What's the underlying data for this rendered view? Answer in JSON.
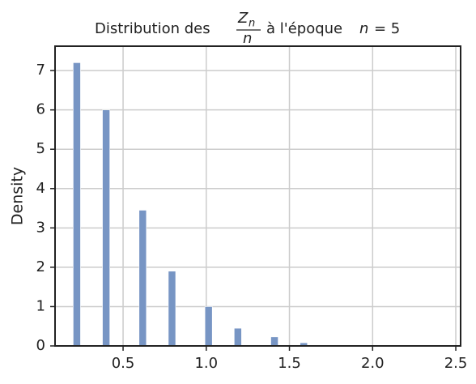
{
  "chart_data": {
    "type": "histogram",
    "title_parts": {
      "prefix": "Distribution des",
      "numerator": "Z",
      "numerator_subscript": "n",
      "denominator": "n",
      "suffix": "à l'époque",
      "epoch_var": "n",
      "epoch_eq": "= 5"
    },
    "ylabel": "Density",
    "bins": [
      0.2,
      0.244,
      0.288,
      0.332,
      0.376,
      0.42,
      0.464,
      0.508,
      0.552,
      0.596,
      0.64,
      0.684,
      0.728,
      0.772,
      0.816,
      0.86,
      0.904,
      0.948,
      0.992,
      1.036,
      1.08,
      1.124,
      1.168,
      1.212,
      1.256,
      1.3,
      1.344,
      1.388,
      1.432,
      1.476,
      1.52,
      1.564,
      1.608,
      1.652,
      1.696,
      1.74,
      1.784,
      1.828,
      1.872,
      1.916,
      1.96,
      2.004,
      2.048,
      2.092,
      2.136,
      2.18,
      2.224,
      2.268,
      2.312,
      2.356,
      2.4
    ],
    "values": [
      7.2,
      0,
      0,
      0,
      6.0,
      0,
      0,
      0,
      0,
      3.45,
      0,
      0,
      0,
      1.9,
      0,
      0,
      0,
      0,
      1.0,
      0,
      0,
      0,
      0.45,
      0,
      0,
      0,
      0,
      0.23,
      0,
      0,
      0,
      0.08,
      0,
      0,
      0,
      0,
      0,
      0,
      0,
      0,
      0,
      0,
      0,
      0,
      0,
      0,
      0,
      0,
      0,
      0
    ],
    "color": "#7795c4",
    "xlim": [
      0.091,
      2.529
    ],
    "ylim": [
      0,
      7.62
    ],
    "xticks": [
      0.5,
      {
        "value": 1,
        "label": "1.0"
      },
      1.5,
      {
        "value": 2,
        "label": "2.0"
      },
      2.5
    ],
    "yticks": [
      0,
      1,
      2,
      3,
      4,
      5,
      6,
      7
    ],
    "grid": true
  }
}
